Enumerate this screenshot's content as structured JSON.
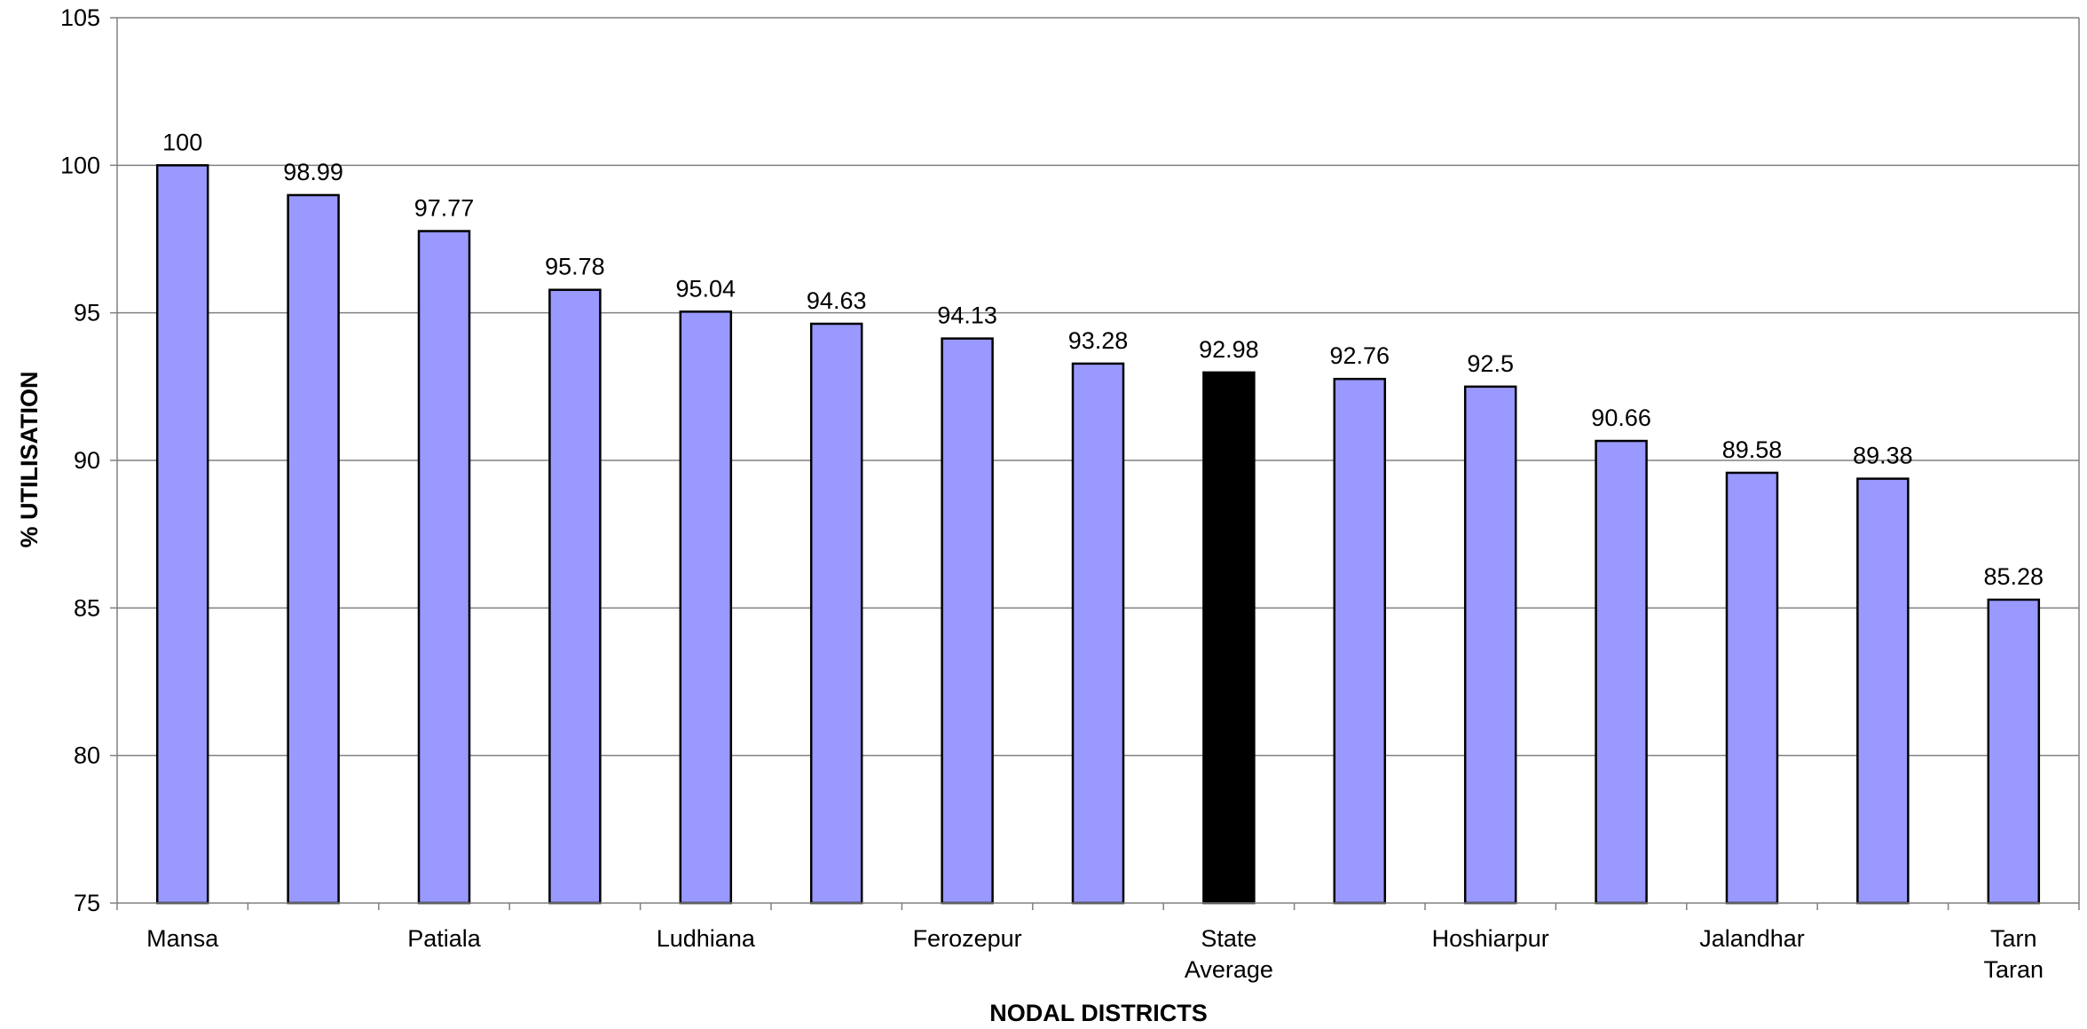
{
  "chart_data": {
    "type": "bar",
    "title": "",
    "xlabel": "NODAL DISTRICTS",
    "ylabel": "% UTILISATION",
    "ylim": [
      75,
      105
    ],
    "yticks": [
      75,
      80,
      85,
      90,
      95,
      100,
      105
    ],
    "grid": true,
    "legend": "none",
    "categories": [
      "Mansa",
      "",
      "Patiala",
      "",
      "Ludhiana",
      "",
      "Ferozepur",
      "",
      "State\nAverage",
      "",
      "Hoshiarpur",
      "",
      "Jalandhar",
      "",
      "Tarn\nTaran"
    ],
    "values": [
      100,
      98.99,
      97.77,
      95.78,
      95.04,
      94.63,
      94.13,
      93.28,
      92.98,
      92.76,
      92.5,
      90.66,
      89.58,
      89.38,
      85.28
    ],
    "highlight_index": 8,
    "colors": {
      "bar": "#9999ff",
      "highlight_bar": "#000000",
      "bar_stroke": "#000000",
      "grid": "#808080",
      "axis": "#808080"
    }
  }
}
